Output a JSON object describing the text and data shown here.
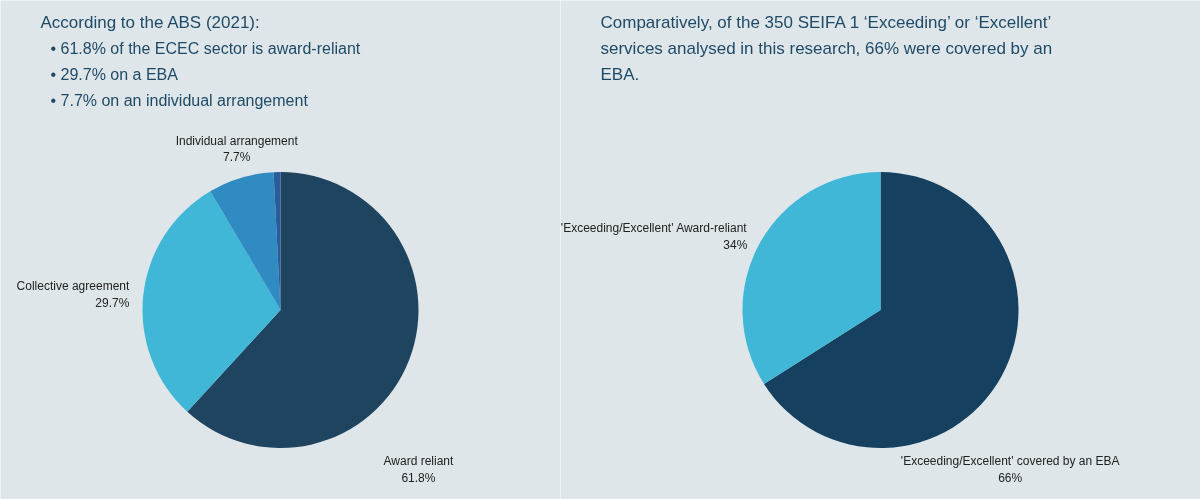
{
  "chart_data": [
    {
      "type": "pie",
      "title": "According to the ABS (2021):",
      "annotations": [
        "• 61.8% of the ECEC sector is award-reliant",
        "• 29.7% on a EBA",
        "• 7.7% on an individual arrangement"
      ],
      "categories": [
        "Award reliant",
        "Collective agreement",
        "Individual arrangement",
        null
      ],
      "values": [
        61.8,
        29.7,
        7.7,
        0.8
      ],
      "value_labels": [
        "61.8%",
        "29.7%",
        "7.7%",
        null
      ],
      "colors": [
        "#1e4460",
        "#41b7d7",
        "#2f8bc1",
        "#2a5c9c"
      ]
    },
    {
      "type": "pie",
      "title": "Comparatively, of the 350 SEIFA 1 ‘Exceeding’ or ‘Excellent’ services analysed in this research, 66% were covered by an EBA.",
      "categories": [
        "'Exceeding/Excellent' covered by an EBA",
        "'Exceeding/Excellent' Award-reliant"
      ],
      "values": [
        66,
        34
      ],
      "value_labels": [
        "66%",
        "34%"
      ],
      "colors": [
        "#15405f",
        "#41b7d7"
      ]
    }
  ]
}
